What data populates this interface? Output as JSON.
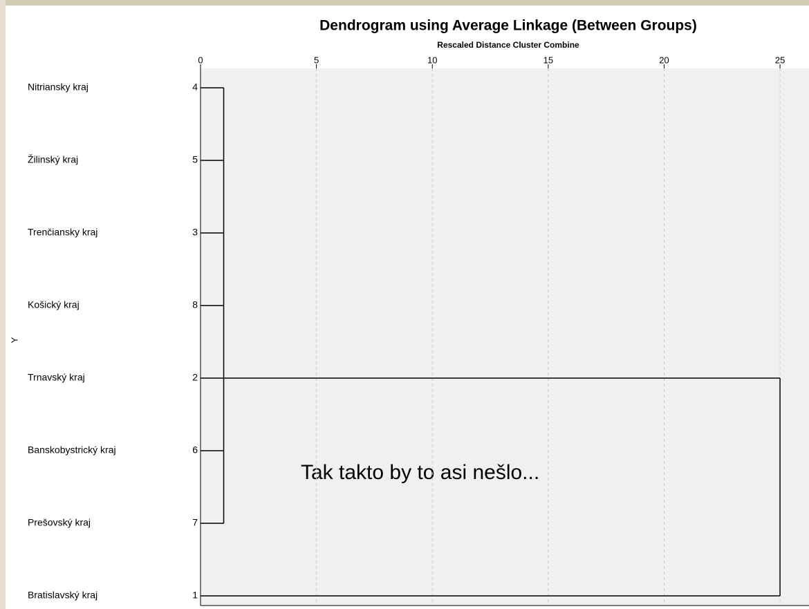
{
  "chart_data": {
    "type": "dendrogram",
    "title": "Dendrogram using Average Linkage (Between Groups)",
    "subtitle": "Rescaled Distance Cluster Combine",
    "ylabel": "Y",
    "xlim": [
      0,
      26.25
    ],
    "xticks": [
      0,
      5,
      10,
      15,
      20,
      25
    ],
    "grid": true,
    "leaves": [
      {
        "label": "Nitriansky kraj",
        "id": 4
      },
      {
        "label": "Žilinský kraj",
        "id": 5
      },
      {
        "label": "Trenčiansky kraj",
        "id": 3
      },
      {
        "label": "Košický kraj",
        "id": 8
      },
      {
        "label": "Trnavský kraj",
        "id": 2
      },
      {
        "label": "Banskobystrický kraj",
        "id": 6
      },
      {
        "label": "Prešovský kraj",
        "id": 7
      },
      {
        "label": "Bratislavský kraj",
        "id": 1
      }
    ],
    "merges": [
      {
        "members": [
          4,
          5,
          3,
          8,
          2,
          6,
          7
        ],
        "distance": 1
      },
      {
        "members": [
          2,
          1
        ],
        "distance": 25
      }
    ],
    "annotation": "Tak takto by to asi nešlo..."
  }
}
